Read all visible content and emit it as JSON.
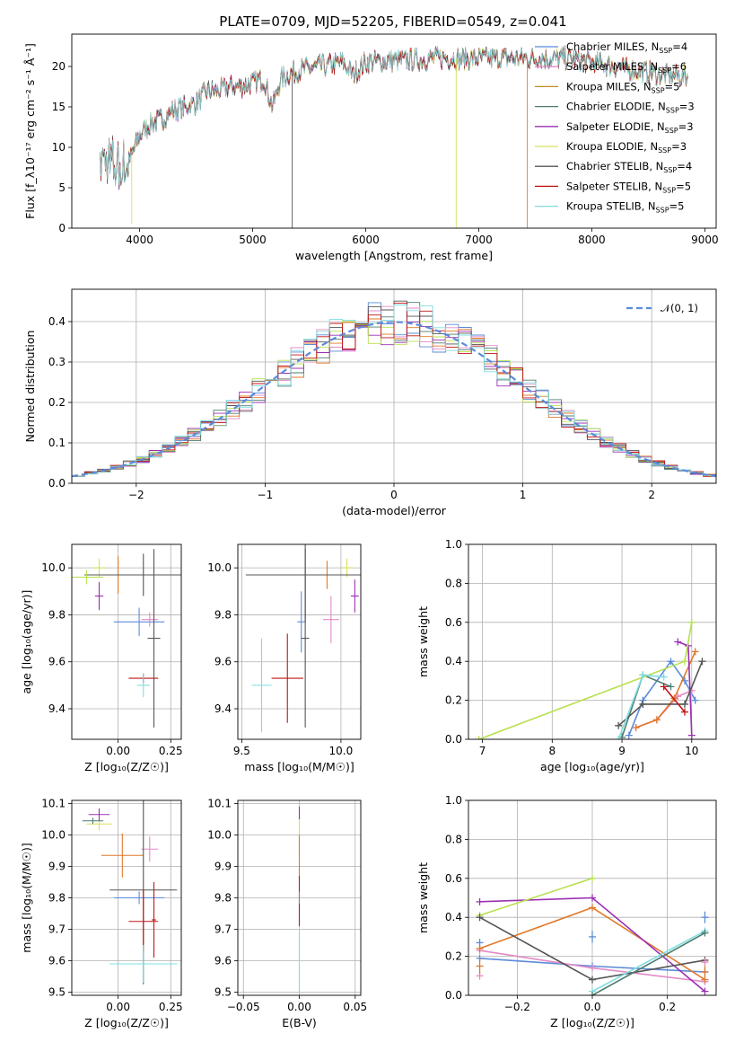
{
  "figure_title": "PLATE=0709, MJD=52205, FIBERID=0549, z=0.041",
  "colors": {
    "Chabrier MILES": "#5b8bd9",
    "Salpeter MILES": "#e38ac7",
    "Kroupa MILES": "#c48a1e",
    "Chabrier ELODIE": "#4f7d70",
    "Salpeter ELODIE": "#9b30b5",
    "Kroupa ELODIE": "#d8e05a",
    "Chabrier STELIB": "#555555",
    "Salpeter STELIB": "#c01515",
    "Kroupa STELIB": "#7fdde0",
    "orange": "#e0792a",
    "lime": "#b8e050",
    "normal_curve": "#5b8bd9",
    "grid": "#b0b0b0"
  },
  "chart_data": [
    {
      "id": "spectrum",
      "type": "line",
      "title": "PLATE=0709, MJD=52205, FIBERID=0549, z=0.041",
      "xlabel": "wavelength [Angstrom, rest frame]",
      "ylabel": "Flux [f_λ10⁻¹⁷ erg cm⁻² s⁻¹ Å⁻¹]",
      "xlim": [
        3400,
        9100
      ],
      "ylim": [
        0,
        24
      ],
      "xticks": [
        4000,
        5000,
        6000,
        7000,
        8000,
        9000
      ],
      "yticks": [
        0,
        5,
        10,
        15,
        20
      ],
      "grid": false,
      "legend_position": "upper-right",
      "legend": [
        {
          "label": "Chabrier MILES, N",
          "sub": "SSP",
          "suffix": "=4",
          "color_key": "Chabrier MILES"
        },
        {
          "label": "Salpeter MILES, N",
          "sub": "SSP",
          "suffix": "=6",
          "color_key": "Salpeter MILES"
        },
        {
          "label": "Kroupa MILES, N",
          "sub": "SSP",
          "suffix": "=5",
          "color_key": "Kroupa MILES"
        },
        {
          "label": "Chabrier ELODIE, N",
          "sub": "SSP",
          "suffix": "=3",
          "color_key": "Chabrier ELODIE"
        },
        {
          "label": "Salpeter ELODIE, N",
          "sub": "SSP",
          "suffix": "=3",
          "color_key": "Salpeter ELODIE"
        },
        {
          "label": "Kroupa ELODIE, N",
          "sub": "SSP",
          "suffix": "=3",
          "color_key": "Kroupa ELODIE"
        },
        {
          "label": "Chabrier STELIB, N",
          "sub": "SSP",
          "suffix": "=4",
          "color_key": "Chabrier STELIB"
        },
        {
          "label": "Salpeter STELIB, N",
          "sub": "SSP",
          "suffix": "=5",
          "color_key": "Salpeter STELIB"
        },
        {
          "label": "Kroupa STELIB, N",
          "sub": "SSP",
          "suffix": "=5",
          "color_key": "Kroupa STELIB"
        }
      ],
      "continuum": [
        [
          3650,
          8.5
        ],
        [
          3800,
          7.5
        ],
        [
          3900,
          8.0
        ],
        [
          4000,
          11.5
        ],
        [
          4100,
          13.0
        ],
        [
          4200,
          13.5
        ],
        [
          4300,
          14.5
        ],
        [
          4400,
          15.0
        ],
        [
          4500,
          15.5
        ],
        [
          4600,
          17.0
        ],
        [
          4700,
          17.0
        ],
        [
          4800,
          17.5
        ],
        [
          4900,
          17.5
        ],
        [
          5000,
          18.0
        ],
        [
          5100,
          18.5
        ],
        [
          5175,
          15.0
        ],
        [
          5250,
          18.5
        ],
        [
          5400,
          19.5
        ],
        [
          5600,
          20.0
        ],
        [
          5800,
          20.5
        ],
        [
          5890,
          19.0
        ],
        [
          6000,
          20.5
        ],
        [
          6200,
          20.7
        ],
        [
          6400,
          20.8
        ],
        [
          6600,
          21.0
        ],
        [
          6800,
          21.0
        ],
        [
          7000,
          21.0
        ],
        [
          7200,
          21.0
        ],
        [
          7400,
          21.0
        ],
        [
          7600,
          21.0
        ],
        [
          7800,
          21.0
        ],
        [
          8000,
          20.5
        ],
        [
          8200,
          20.0
        ],
        [
          8400,
          19.5
        ],
        [
          8600,
          19.0
        ],
        [
          8800,
          18.8
        ]
      ],
      "dropouts": [
        {
          "x": 5350,
          "y_min": 0,
          "color_key": "Chabrier STELIB"
        },
        {
          "x": 6800,
          "y_min": 0,
          "color_key": "Kroupa ELODIE"
        },
        {
          "x": 7430,
          "y_min": 0,
          "color_key": "orange"
        },
        {
          "x": 3930,
          "y_min": 0.5,
          "color_key": "Kroupa ELODIE"
        }
      ]
    },
    {
      "id": "residual-histogram",
      "type": "step-histogram",
      "xlabel": "(data-model)/error",
      "ylabel": "Normed distribution",
      "xlim": [
        -2.5,
        2.5
      ],
      "ylim": [
        0,
        0.48
      ],
      "xticks": [
        -2,
        -1,
        0,
        1,
        2
      ],
      "yticks": [
        0.0,
        0.1,
        0.2,
        0.3,
        0.4
      ],
      "grid": true,
      "legend_position": "upper-right",
      "legend": [
        {
          "label": "𝒩(0, 1)",
          "style": "dashed",
          "color_key": "normal_curve"
        }
      ],
      "bin_width": 0.1,
      "normal_reference": {
        "mean": 0,
        "sigma": 1,
        "peak": 0.399
      }
    },
    {
      "id": "age-vs-Z",
      "type": "errorbar",
      "xlabel": "Z [log₁₀(Z/Z☉)]",
      "ylabel": "age  [log₁₀(age/yr)]",
      "xlim": [
        -0.22,
        0.3
      ],
      "ylim": [
        9.27,
        10.1
      ],
      "xticks": [
        0.0,
        0.25
      ],
      "yticks": [
        9.4,
        9.6,
        9.8,
        10.0
      ],
      "grid": true,
      "points": [
        {
          "color_key": "Chabrier MILES",
          "x": 0.1,
          "xerr": 0.12,
          "y": 9.77,
          "yerr": 0.06
        },
        {
          "color_key": "Salpeter MILES",
          "x": 0.15,
          "xerr": 0.04,
          "y": 9.78,
          "yerr": 0.03
        },
        {
          "color_key": "orange",
          "x": 0.0,
          "xerr": 0.1,
          "y": 9.97,
          "yerr": 0.08
        },
        {
          "color_key": "Kroupa ELODIE",
          "x": -0.09,
          "xerr": 0.03,
          "y": 10.0,
          "yerr": 0.04
        },
        {
          "color_key": "Salpeter ELODIE",
          "x": -0.09,
          "xerr": 0.02,
          "y": 9.88,
          "yerr": 0.06
        },
        {
          "color_key": "Chabrier STELIB",
          "x": 0.12,
          "xerr": 0.28,
          "y": 9.97,
          "yerr": 0.09
        },
        {
          "color_key": "Chabrier STELIB",
          "x": 0.17,
          "xerr": 0.03,
          "y": 9.7,
          "yerr": 0.38
        },
        {
          "color_key": "Salpeter STELIB",
          "x": 0.12,
          "xerr": 0.07,
          "y": 9.53,
          "yerr": 0.02
        },
        {
          "color_key": "Kroupa STELIB",
          "x": 0.12,
          "xerr": 0.03,
          "y": 9.5,
          "yerr": 0.05
        },
        {
          "color_key": "lime",
          "x": -0.15,
          "xerr": 0.08,
          "y": 9.96,
          "yerr": 0.03
        }
      ]
    },
    {
      "id": "age-vs-mass",
      "type": "errorbar",
      "xlabel": "mass [log₁₀(M/M☉)]",
      "ylabel": "",
      "xlim": [
        9.48,
        10.1
      ],
      "ylim": [
        9.27,
        10.1
      ],
      "xticks": [
        9.5,
        10.0
      ],
      "yticks": [
        9.4,
        9.6,
        9.8,
        10.0
      ],
      "grid": true,
      "points": [
        {
          "color_key": "Chabrier MILES",
          "x": 9.8,
          "xerr": 0.02,
          "y": 9.77,
          "yerr": 0.13
        },
        {
          "color_key": "Salpeter MILES",
          "x": 9.95,
          "xerr": 0.04,
          "y": 9.78,
          "yerr": 0.1
        },
        {
          "color_key": "orange",
          "x": 9.93,
          "xerr": 0.1,
          "y": 9.97,
          "yerr": 0.06
        },
        {
          "color_key": "Kroupa ELODIE",
          "x": 10.03,
          "xerr": 0.03,
          "y": 10.0,
          "yerr": 0.04
        },
        {
          "color_key": "Salpeter ELODIE",
          "x": 10.07,
          "xerr": 0.02,
          "y": 9.88,
          "yerr": 0.07
        },
        {
          "color_key": "Chabrier STELIB",
          "x": 9.82,
          "xerr": 0.3,
          "y": 9.97,
          "yerr": 0.2
        },
        {
          "color_key": "Chabrier STELIB",
          "x": 9.82,
          "xerr": 0.02,
          "y": 9.7,
          "yerr": 0.38
        },
        {
          "color_key": "Salpeter STELIB",
          "x": 9.73,
          "xerr": 0.08,
          "y": 9.53,
          "yerr": 0.19
        },
        {
          "color_key": "Kroupa STELIB",
          "x": 9.6,
          "xerr": 0.05,
          "y": 9.5,
          "yerr": 0.2
        }
      ]
    },
    {
      "id": "mass-weight-vs-age",
      "type": "line",
      "xlabel": "age  [log₁₀(age/yr)]",
      "ylabel": "mass weight",
      "xlim": [
        6.8,
        10.35
      ],
      "ylim": [
        0,
        1
      ],
      "xticks": [
        7,
        8,
        9,
        10
      ],
      "yticks": [
        0.0,
        0.2,
        0.4,
        0.6,
        0.8,
        1.0
      ],
      "grid": true,
      "series": [
        {
          "color_key": "Chabrier MILES",
          "points": [
            [
              9.1,
              0.02
            ],
            [
              9.3,
              0.2
            ],
            [
              9.7,
              0.4
            ],
            [
              9.9,
              0.3
            ],
            [
              10.05,
              0.2
            ]
          ]
        },
        {
          "color_key": "Salpeter MILES",
          "points": [
            [
              9.2,
              0.06
            ],
            [
              9.5,
              0.1
            ],
            [
              9.8,
              0.22
            ],
            [
              10.0,
              0.25
            ]
          ]
        },
        {
          "color_key": "orange",
          "points": [
            [
              9.2,
              0.06
            ],
            [
              9.5,
              0.1
            ],
            [
              9.75,
              0.21
            ],
            [
              10.05,
              0.45
            ]
          ]
        },
        {
          "color_key": "Chabrier ELODIE",
          "points": [
            [
              9.0,
              0.01
            ],
            [
              9.3,
              0.33
            ],
            [
              9.7,
              0.27
            ]
          ]
        },
        {
          "color_key": "Salpeter ELODIE",
          "points": [
            [
              9.8,
              0.5
            ],
            [
              9.95,
              0.48
            ],
            [
              10.0,
              0.02
            ]
          ]
        },
        {
          "color_key": "lime",
          "points": [
            [
              6.95,
              0.0
            ],
            [
              9.9,
              0.4
            ],
            [
              10.0,
              0.6
            ]
          ]
        },
        {
          "color_key": "Chabrier STELIB",
          "points": [
            [
              8.95,
              0.07
            ],
            [
              9.3,
              0.18
            ],
            [
              9.9,
              0.18
            ],
            [
              10.15,
              0.4
            ]
          ]
        },
        {
          "color_key": "Salpeter STELIB",
          "points": [
            [
              9.6,
              0.27
            ],
            [
              9.9,
              0.14
            ]
          ]
        },
        {
          "color_key": "Kroupa STELIB",
          "points": [
            [
              8.95,
              0.0
            ],
            [
              9.3,
              0.33
            ],
            [
              9.6,
              0.32
            ]
          ]
        }
      ]
    },
    {
      "id": "mass-vs-Z",
      "type": "errorbar",
      "xlabel": "Z [log₁₀(Z/Z☉)]",
      "ylabel": "mass [log₁₀(M/M☉)]",
      "xlim": [
        -0.22,
        0.3
      ],
      "ylim": [
        9.49,
        10.11
      ],
      "xticks": [
        0.0,
        0.25
      ],
      "yticks": [
        9.5,
        9.6,
        9.7,
        9.8,
        9.9,
        10.0,
        10.1
      ],
      "grid": true,
      "points": [
        {
          "color_key": "Chabrier MILES",
          "x": 0.1,
          "xerr": 0.12,
          "y": 9.8,
          "yerr": 0.02
        },
        {
          "color_key": "Salpeter MILES",
          "x": 0.15,
          "xerr": 0.04,
          "y": 9.955,
          "yerr": 0.04
        },
        {
          "color_key": "orange",
          "x": 0.02,
          "xerr": 0.1,
          "y": 9.935,
          "yerr": 0.07
        },
        {
          "color_key": "Kroupa ELODIE",
          "x": -0.09,
          "xerr": 0.06,
          "y": 10.035,
          "yerr": 0.02
        },
        {
          "color_key": "Salpeter ELODIE",
          "x": -0.09,
          "xerr": 0.05,
          "y": 10.065,
          "yerr": 0.02
        },
        {
          "color_key": "Chabrier ELODIE",
          "x": -0.12,
          "xerr": 0.05,
          "y": 10.045,
          "yerr": 0.01
        },
        {
          "color_key": "Chabrier STELIB",
          "x": 0.12,
          "xerr": 0.16,
          "y": 9.825,
          "yerr": 0.3
        },
        {
          "color_key": "Salpeter STELIB",
          "x": 0.12,
          "xerr": 0.07,
          "y": 9.725,
          "yerr": 0.1
        },
        {
          "color_key": "Salpeter STELIB",
          "x": 0.17,
          "xerr": 0.01,
          "y": 9.73,
          "yerr": 0.12
        },
        {
          "color_key": "Kroupa STELIB",
          "x": 0.12,
          "xerr": 0.16,
          "y": 9.59,
          "yerr": 0.06
        }
      ]
    },
    {
      "id": "mass-vs-EBV",
      "type": "errorbar",
      "xlabel": "E(B-V)",
      "ylabel": "",
      "xlim": [
        -0.055,
        0.055
      ],
      "ylim": [
        9.49,
        10.11
      ],
      "xticks": [
        -0.05,
        0.0,
        0.05
      ],
      "yticks": [
        9.5,
        9.6,
        9.7,
        9.8,
        9.9,
        10.0,
        10.1
      ],
      "grid": true,
      "points": [
        {
          "color_key": "Kroupa ELODIE",
          "x": 0.0,
          "xerr": 0.0,
          "y": 10.0,
          "yerr": 0.06
        },
        {
          "color_key": "Salpeter ELODIE",
          "x": 0.0,
          "xerr": 0.0,
          "y": 10.07,
          "yerr": 0.02
        },
        {
          "color_key": "orange",
          "x": 0.0,
          "xerr": 0.0,
          "y": 9.93,
          "yerr": 0.07
        },
        {
          "color_key": "Salpeter STELIB",
          "x": 0.0,
          "xerr": 0.0,
          "y": 9.79,
          "yerr": 0.08
        },
        {
          "color_key": "Chabrier MILES",
          "x": 0.0,
          "xerr": 0.0,
          "y": 9.8,
          "yerr": 0.02
        },
        {
          "color_key": "Kroupa STELIB",
          "x": 0.0,
          "xerr": 0.0,
          "y": 9.6,
          "yerr": 0.1
        }
      ]
    },
    {
      "id": "mass-weight-vs-Z",
      "type": "line",
      "xlabel": "Z [log₁₀(Z/Z☉)]",
      "ylabel": "mass weight",
      "xlim": [
        -0.33,
        0.33
      ],
      "ylim": [
        0,
        1
      ],
      "xticks": [
        -0.2,
        0.0,
        0.2
      ],
      "yticks": [
        0.0,
        0.2,
        0.4,
        0.6,
        0.8,
        1.0
      ],
      "grid": true,
      "series": [
        {
          "color_key": "Chabrier MILES",
          "points": [
            [
              -0.3,
              0.19
            ],
            [
              0.0,
              0.15
            ],
            [
              0.3,
              0.12
            ]
          ]
        },
        {
          "color_key": "Salpeter MILES",
          "points": [
            [
              -0.3,
              0.23
            ],
            [
              0.0,
              0.14
            ],
            [
              0.3,
              0.07
            ]
          ]
        },
        {
          "color_key": "orange",
          "points": [
            [
              -0.3,
              0.24
            ],
            [
              0.0,
              0.45
            ],
            [
              0.3,
              0.08
            ]
          ]
        },
        {
          "color_key": "Salpeter ELODIE",
          "points": [
            [
              -0.3,
              0.48
            ],
            [
              0.0,
              0.5
            ],
            [
              0.3,
              0.02
            ]
          ]
        },
        {
          "color_key": "lime",
          "points": [
            [
              -0.3,
              0.41
            ],
            [
              0.0,
              0.6
            ]
          ]
        },
        {
          "color_key": "Chabrier STELIB",
          "points": [
            [
              -0.3,
              0.4
            ],
            [
              0.0,
              0.08
            ],
            [
              0.3,
              0.18
            ]
          ]
        },
        {
          "color_key": "Kroupa STELIB",
          "points": [
            [
              0.0,
              0.02
            ],
            [
              0.3,
              0.33
            ]
          ]
        },
        {
          "color_key": "Chabrier ELODIE",
          "points": [
            [
              0.0,
              0.0
            ],
            [
              0.3,
              0.32
            ]
          ]
        }
      ],
      "errorbars": [
        {
          "color_key": "Chabrier MILES",
          "x": -0.3,
          "y": 0.27,
          "yerr": 0.02
        },
        {
          "color_key": "Salpeter MILES",
          "x": -0.3,
          "y": 0.1,
          "yerr": 0.02
        },
        {
          "color_key": "orange",
          "x": -0.3,
          "y": 0.15,
          "yerr": 0.04
        },
        {
          "color_key": "Chabrier MILES",
          "x": 0.0,
          "y": 0.3,
          "yerr": 0.03
        },
        {
          "color_key": "Chabrier MILES",
          "x": 0.3,
          "y": 0.4,
          "yerr": 0.03
        },
        {
          "color_key": "orange",
          "x": 0.3,
          "y": 0.12,
          "yerr": 0.03
        },
        {
          "color_key": "Salpeter MILES",
          "x": 0.3,
          "y": 0.17,
          "yerr": 0.02
        }
      ]
    }
  ]
}
